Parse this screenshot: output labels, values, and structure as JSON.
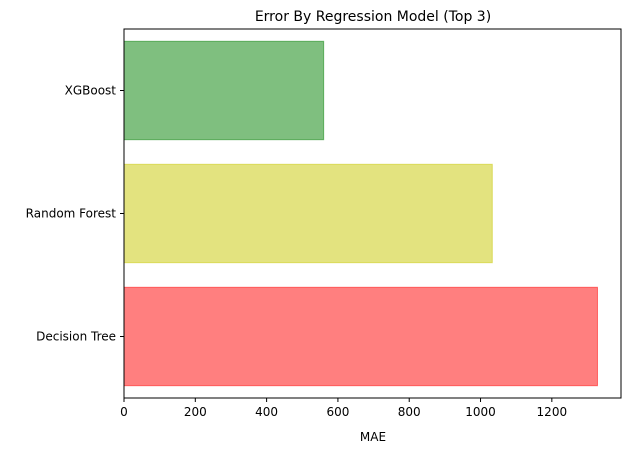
{
  "chart_data": {
    "type": "bar",
    "orientation": "horizontal",
    "title": "Error By Regression Model (Top 3)",
    "xlabel": "MAE",
    "ylabel": "",
    "categories": [
      "Decision Tree",
      "Random Forest",
      "XGBoost"
    ],
    "values": [
      1328,
      1033,
      560
    ],
    "bar_colors": [
      "#ff0000",
      "#c8c800",
      "#008000"
    ],
    "bar_alpha": 0.5,
    "xlim": [
      0,
      1394
    ],
    "xticks": [
      0,
      200,
      400,
      600,
      800,
      1000,
      1200
    ],
    "grid": false,
    "legend": "none"
  }
}
